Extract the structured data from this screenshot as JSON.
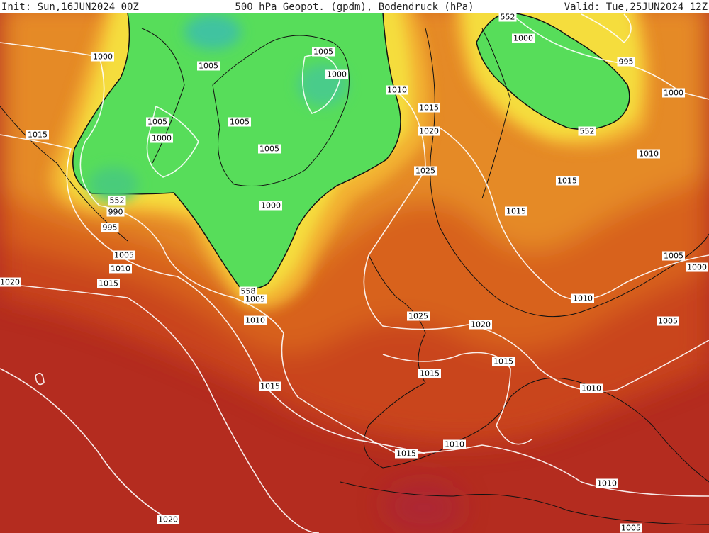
{
  "header": {
    "init": "Init: Sun,16JUN2024 00Z",
    "title": "500 hPa Geopot. (gpdm), Bodendruck (hPa)",
    "valid": "Valid: Tue,25JUN2024 12Z"
  },
  "contour_labels": [
    1000,
    1005,
    1005,
    1000,
    1010,
    552,
    1000,
    995,
    1000,
    1015,
    1020,
    552,
    1010,
    1015,
    1005,
    1000,
    1005,
    1005,
    1025,
    1015,
    552,
    990,
    995,
    1000,
    1015,
    1005,
    1010,
    1015,
    1020,
    1005,
    1000,
    558,
    1005,
    1010,
    1010,
    1025,
    1020,
    1005,
    1015,
    1015,
    1010,
    1015,
    1015,
    1010,
    1010,
    1020,
    1005
  ]
}
